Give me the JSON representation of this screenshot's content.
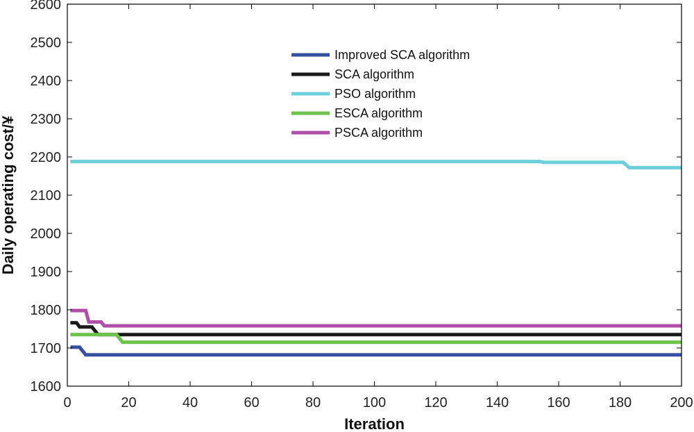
{
  "chart_data": {
    "type": "line",
    "title": "",
    "xlabel": "Iteration",
    "ylabel": "Daily operating cost/¥",
    "xlim": [
      0,
      200
    ],
    "ylim": [
      1600,
      2600
    ],
    "xticks": [
      0,
      20,
      40,
      60,
      80,
      100,
      120,
      140,
      160,
      180,
      200
    ],
    "yticks": [
      1600,
      1700,
      1800,
      1900,
      2000,
      2100,
      2200,
      2300,
      2400,
      2500,
      2600
    ],
    "grid": false,
    "legend_position": "top-center",
    "series": [
      {
        "name": "Improved SCA algorithm",
        "color": "#3550A0",
        "points": [
          [
            1,
            1702
          ],
          [
            4,
            1702
          ],
          [
            6,
            1682
          ],
          [
            200,
            1682
          ]
        ]
      },
      {
        "name": "SCA algorithm",
        "color": "#1A1A1A",
        "points": [
          [
            1,
            1766
          ],
          [
            3,
            1766
          ],
          [
            4,
            1755
          ],
          [
            8,
            1755
          ],
          [
            10,
            1735
          ],
          [
            200,
            1735
          ]
        ]
      },
      {
        "name": "PSO algorithm",
        "color": "#6ECFDA",
        "points": [
          [
            1,
            2188
          ],
          [
            154,
            2188
          ],
          [
            155,
            2186
          ],
          [
            181,
            2186
          ],
          [
            183,
            2172
          ],
          [
            200,
            2172
          ]
        ]
      },
      {
        "name": "ESCA algorithm",
        "color": "#6CC24A",
        "points": [
          [
            1,
            1735
          ],
          [
            16,
            1735
          ],
          [
            18,
            1715
          ],
          [
            200,
            1715
          ]
        ]
      },
      {
        "name": "PSCA algorithm",
        "color": "#B04FA8",
        "points": [
          [
            1,
            1798
          ],
          [
            6,
            1798
          ],
          [
            7,
            1768
          ],
          [
            11,
            1768
          ],
          [
            12,
            1758
          ],
          [
            200,
            1758
          ]
        ]
      }
    ]
  }
}
